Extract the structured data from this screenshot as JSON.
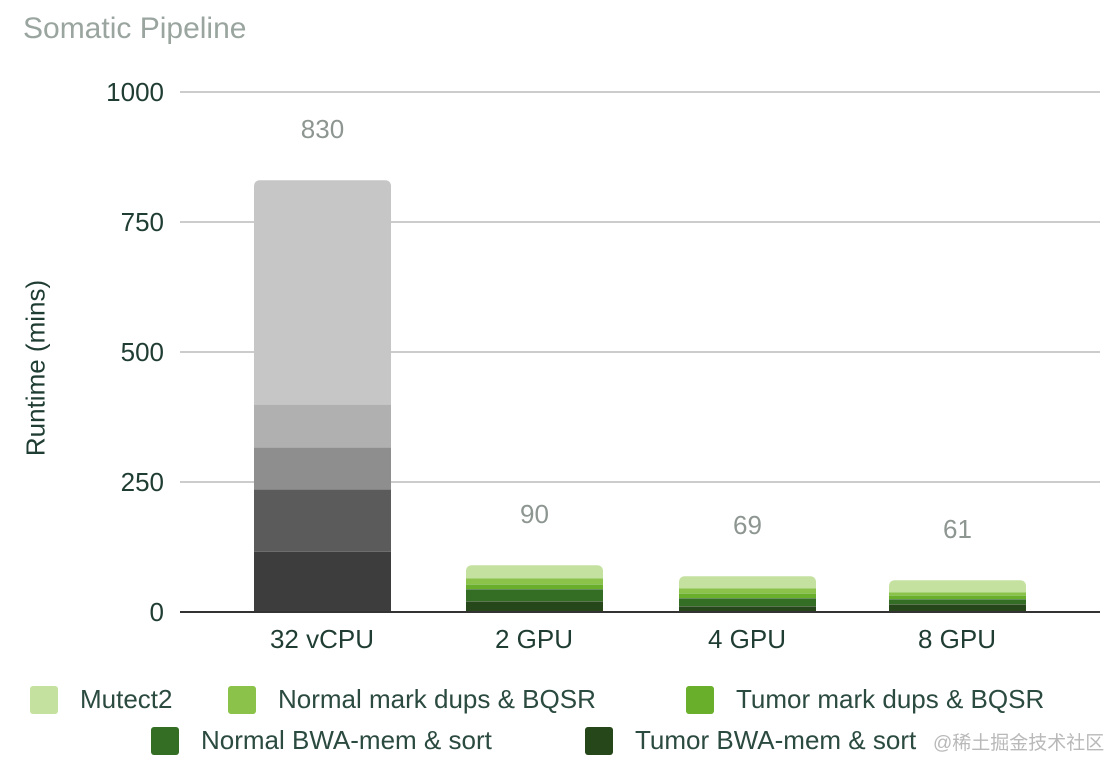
{
  "chart_data": {
    "type": "bar",
    "stacked": true,
    "title": "Somatic Pipeline",
    "xlabel": "",
    "ylabel": "Runtime (mins)",
    "ylim": [
      0,
      1000
    ],
    "yticks": [
      "0",
      "250",
      "500",
      "750",
      "1000"
    ],
    "grid": true,
    "legend_position": "bottom",
    "categories": [
      "32 vCPU",
      "2 GPU",
      "4 GPU",
      "8 GPU"
    ],
    "totals": [
      "830",
      "90",
      "69",
      "61"
    ],
    "series": [
      {
        "name": "Tumor BWA-mem & sort",
        "values": [
          117,
          21,
          12,
          15
        ],
        "color": "#26471a",
        "cpu_color": "#3d3d3d"
      },
      {
        "name": "Normal BWA-mem & sort",
        "values": [
          120,
          23,
          15,
          10
        ],
        "color": "#336e24",
        "cpu_color": "#5b5b5b"
      },
      {
        "name": "Tumor mark dups & BQSR",
        "values": [
          81,
          10,
          10,
          8
        ],
        "color": "#6aaf2b",
        "cpu_color": "#8e8e8e"
      },
      {
        "name": "Normal mark dups & BQSR",
        "values": [
          82,
          12,
          9,
          6
        ],
        "color": "#8bc34a",
        "cpu_color": "#b0b0b0"
      },
      {
        "name": "Mutect2",
        "values": [
          430,
          24,
          23,
          22
        ],
        "color": "#c5e1a0",
        "cpu_color": "#c6c6c6"
      }
    ]
  },
  "legend": [
    {
      "label": "Mutect2",
      "color": "#c5e1a0"
    },
    {
      "label": "Normal mark dups & BQSR",
      "color": "#8bc34a"
    },
    {
      "label": "Tumor mark dups & BQSR",
      "color": "#6aaf2b"
    },
    {
      "label": "Normal BWA-mem & sort",
      "color": "#336e24"
    },
    {
      "label": "Tumor BWA-mem & sort",
      "color": "#26471a"
    }
  ],
  "watermark": "@稀土掘金技术社区"
}
